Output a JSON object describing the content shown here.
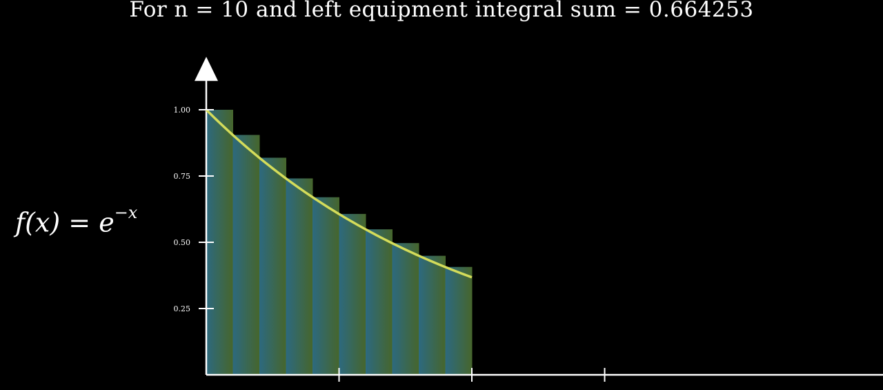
{
  "title": "For n = 10 and left equipment integral sum = 0.664253",
  "function_label": {
    "lhs": "f(x)",
    "eq": "=",
    "base": "e",
    "exponent": "−x"
  },
  "colors": {
    "background": "#000000",
    "axis": "#ffffff",
    "curve": "#d4dc5a",
    "fill_left": "#2f6f86",
    "fill_right": "#4a6b2e"
  },
  "chart_data": {
    "type": "area",
    "title": "For n = 10 and left equipment integral sum = 0.664253",
    "function": "e^(-x)",
    "n": 10,
    "left_sum": 0.664253,
    "xlim": [
      0,
      3.8
    ],
    "ylim": [
      0,
      1.2
    ],
    "x_range": [
      0,
      1
    ],
    "y_ticks": [
      "1.00",
      "0.75",
      "0.50",
      "0.25"
    ],
    "y_tick_values": [
      1.0,
      0.75,
      0.5,
      0.25
    ],
    "x_tick_values": [
      1,
      2,
      3
    ],
    "rectangles": [
      {
        "x_left": 0.0,
        "height": 1.0
      },
      {
        "x_left": 0.1,
        "height": 0.905
      },
      {
        "x_left": 0.2,
        "height": 0.819
      },
      {
        "x_left": 0.3,
        "height": 0.741
      },
      {
        "x_left": 0.4,
        "height": 0.67
      },
      {
        "x_left": 0.5,
        "height": 0.607
      },
      {
        "x_left": 0.6,
        "height": 0.549
      },
      {
        "x_left": 0.7,
        "height": 0.497
      },
      {
        "x_left": 0.8,
        "height": 0.449
      },
      {
        "x_left": 0.9,
        "height": 0.407
      }
    ],
    "grid": false
  }
}
